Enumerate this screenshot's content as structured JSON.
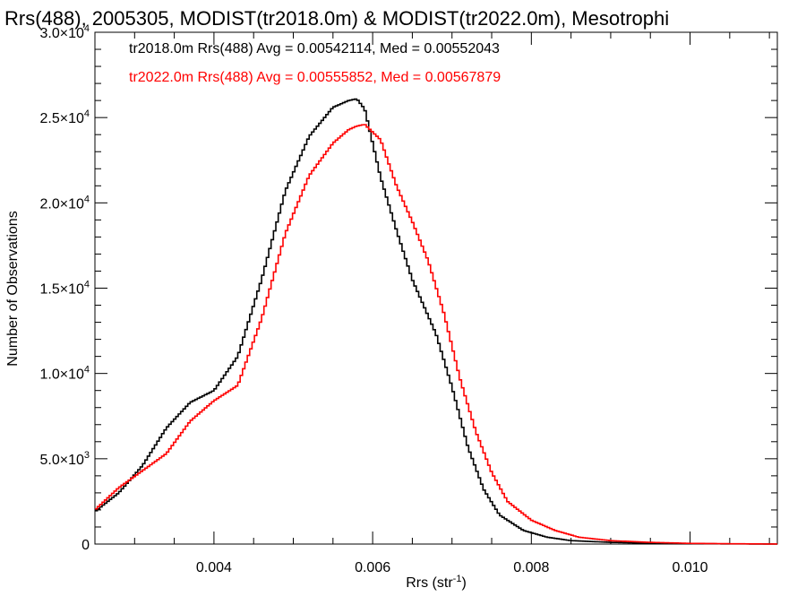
{
  "chart_data": {
    "type": "line",
    "title": "Rrs(488), 2005305, MODIST(tr2018.0m) & MODIST(tr2022.0m), Mesotrophi",
    "xlabel": "Rrs (str",
    "xlabel_sup": "-1",
    "xlabel_close": ")",
    "ylabel": "Number of Observations",
    "xlim": [
      0.0025,
      0.0111
    ],
    "ylim": [
      0,
      30000
    ],
    "x_ticks": [
      {
        "value": 0.004,
        "label": "0.004"
      },
      {
        "value": 0.006,
        "label": "0.006"
      },
      {
        "value": 0.008,
        "label": "0.008"
      },
      {
        "value": 0.01,
        "label": "0.010"
      }
    ],
    "y_ticks": [
      {
        "value": 0,
        "mant": "0",
        "exp": ""
      },
      {
        "value": 5000,
        "mant": "5.0×10",
        "exp": "3"
      },
      {
        "value": 10000,
        "mant": "1.0×10",
        "exp": "4"
      },
      {
        "value": 15000,
        "mant": "1.5×10",
        "exp": "4"
      },
      {
        "value": 20000,
        "mant": "2.0×10",
        "exp": "4"
      },
      {
        "value": 25000,
        "mant": "2.5×10",
        "exp": "4"
      },
      {
        "value": 30000,
        "mant": "3.0×10",
        "exp": "4"
      }
    ],
    "legend_position": "top-left",
    "grid": false,
    "series": [
      {
        "label": "tr2018.0m Rrs(488) Avg = 0.00542114, Med = 0.00552043",
        "color": "#000000",
        "x": [
          0.0025,
          0.0028,
          0.0031,
          0.0034,
          0.0037,
          0.004,
          0.0043,
          0.0046,
          0.0049,
          0.0052,
          0.0055,
          0.0057,
          0.0058,
          0.0059,
          0.0061,
          0.0063,
          0.0065,
          0.0068,
          0.007,
          0.0072,
          0.0074,
          0.0076,
          0.0079,
          0.0082,
          0.0085,
          0.009,
          0.0095,
          0.01,
          0.0105,
          0.0111
        ],
        "y": [
          1900,
          3000,
          4600,
          6800,
          8300,
          9000,
          11000,
          15500,
          20700,
          23900,
          25600,
          26000,
          26100,
          25500,
          21500,
          18400,
          15500,
          12300,
          9200,
          5700,
          3200,
          1700,
          800,
          400,
          200,
          100,
          50,
          20,
          10,
          0
        ]
      },
      {
        "label": "tr2022.0m Rrs(488) Avg = 0.00555852, Med = 0.00567879",
        "color": "#ff0000",
        "x": [
          0.0025,
          0.0028,
          0.0031,
          0.0034,
          0.0037,
          0.004,
          0.0043,
          0.0046,
          0.0049,
          0.0052,
          0.0055,
          0.0057,
          0.0058,
          0.0059,
          0.0061,
          0.0063,
          0.0065,
          0.0067,
          0.0069,
          0.0071,
          0.0073,
          0.0075,
          0.0077,
          0.008,
          0.0083,
          0.0086,
          0.009,
          0.0095,
          0.01,
          0.0105,
          0.0111
        ],
        "y": [
          2000,
          3300,
          4300,
          5300,
          7200,
          8400,
          9300,
          13200,
          18200,
          21600,
          23500,
          24300,
          24500,
          24600,
          23700,
          21000,
          18900,
          16600,
          13500,
          9700,
          6600,
          4200,
          2500,
          1400,
          800,
          400,
          200,
          100,
          40,
          20,
          0
        ]
      }
    ]
  }
}
